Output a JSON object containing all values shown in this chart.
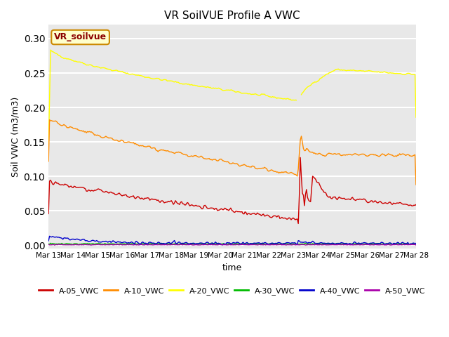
{
  "title": "VR SoilVUE Profile A VWC",
  "xlabel": "time",
  "ylabel": "Soil VWC (m3/m3)",
  "ylim": [
    -0.005,
    0.32
  ],
  "xlim_days": [
    0,
    15
  ],
  "background_color": "#e8e8e8",
  "grid_color": "white",
  "series": {
    "A-05_VWC": {
      "color": "#cc0000",
      "lw": 1.0
    },
    "A-10_VWC": {
      "color": "#ff8c00",
      "lw": 1.0
    },
    "A-20_VWC": {
      "color": "#ffff00",
      "lw": 1.0
    },
    "A-30_VWC": {
      "color": "#00bb00",
      "lw": 1.0
    },
    "A-40_VWC": {
      "color": "#0000cc",
      "lw": 1.0
    },
    "A-50_VWC": {
      "color": "#aa00aa",
      "lw": 1.0
    }
  },
  "xtick_labels": [
    "Mar 13",
    "Mar 14",
    "Mar 15",
    "Mar 16",
    "Mar 17",
    "Mar 18",
    "Mar 19",
    "Mar 20",
    "Mar 21",
    "Mar 22",
    "Mar 23",
    "Mar 24",
    "Mar 25",
    "Mar 26",
    "Mar 27",
    "Mar 28"
  ],
  "yticks": [
    0.0,
    0.05,
    0.1,
    0.15,
    0.2,
    0.25,
    0.3
  ],
  "legend_box": {
    "text": "VR_soilvue",
    "facecolor": "#ffffcc",
    "edgecolor": "#cc8800"
  },
  "points_per_day": 24,
  "total_days": 15,
  "rain_day": 10.2
}
